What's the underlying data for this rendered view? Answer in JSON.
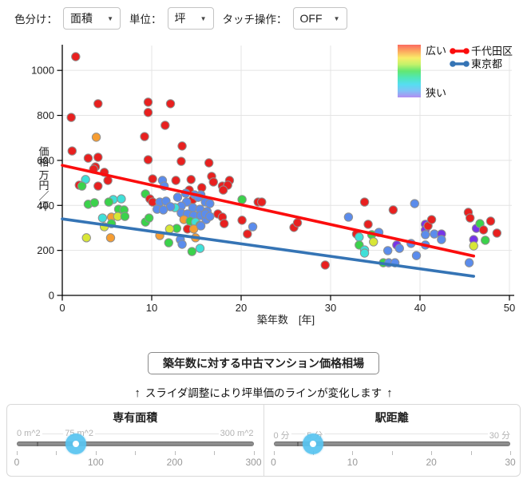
{
  "controls": {
    "color_by_label": "色分け：",
    "color_by_value": "面積",
    "unit_label": "単位：",
    "unit_value": "坪",
    "touch_label": "タッチ操作：",
    "touch_value": "OFF",
    "caret": "▼"
  },
  "chart_data": {
    "type": "scatter",
    "xlabel": "築年数　[年]",
    "ylabel": "価格 万円／坪",
    "xlim": [
      0,
      50
    ],
    "ylim": [
      0,
      1100
    ],
    "xticks": [
      0,
      10,
      20,
      30,
      40,
      50
    ],
    "yticks": [
      0,
      200,
      400,
      600,
      800,
      1000
    ],
    "grid": true,
    "point_colors": {
      "R": "#e8201f",
      "O": "#f69d32",
      "Y": "#d8e636",
      "G": "#3bd24b",
      "C": "#3fe0d8",
      "B": "#5b8cec",
      "P": "#7734e8"
    },
    "legend": {
      "gradient_labels": {
        "top": "広い",
        "bottom": "狭い"
      },
      "gradient_colors": [
        "#fb6a60",
        "#fcaa5f",
        "#f9ec68",
        "#c3f26a",
        "#63e771",
        "#50e7b7",
        "#55def0",
        "#7fc2f6",
        "#b28df2"
      ],
      "series": [
        {
          "label": "千代田区",
          "color": "#fb0d0d"
        },
        {
          "label": "東京都",
          "color": "#3574b5"
        }
      ]
    },
    "trend_lines": [
      {
        "name": "千代田区",
        "color": "#fb0d0d",
        "x": [
          0,
          46
        ],
        "y": [
          578,
          175
        ]
      },
      {
        "name": "東京都",
        "color": "#3574b5",
        "x": [
          0,
          46
        ],
        "y": [
          340,
          85
        ]
      }
    ],
    "points": [
      [
        1.5,
        1061,
        "R"
      ],
      [
        4.0,
        852,
        "R"
      ],
      [
        1.0,
        791,
        "R"
      ],
      [
        9.6,
        859,
        "R"
      ],
      [
        9.6,
        813,
        "R"
      ],
      [
        12.1,
        852,
        "R"
      ],
      [
        11.5,
        756,
        "R"
      ],
      [
        3.8,
        703,
        "O"
      ],
      [
        9.2,
        706,
        "R"
      ],
      [
        1.1,
        642,
        "R"
      ],
      [
        13.4,
        664,
        "R"
      ],
      [
        2.9,
        610,
        "R"
      ],
      [
        4.0,
        614,
        "R"
      ],
      [
        3.7,
        571,
        "R"
      ],
      [
        9.6,
        603,
        "R"
      ],
      [
        13.3,
        596,
        "R"
      ],
      [
        16.4,
        589,
        "R"
      ],
      [
        3.5,
        561,
        "R"
      ],
      [
        4.7,
        547,
        "R"
      ],
      [
        5.1,
        511,
        "R"
      ],
      [
        2.6,
        515,
        "C"
      ],
      [
        1.9,
        490,
        "R"
      ],
      [
        2.2,
        486,
        "G"
      ],
      [
        4.0,
        486,
        "R"
      ],
      [
        10.1,
        518,
        "R"
      ],
      [
        11.2,
        511,
        "B"
      ],
      [
        11.4,
        486,
        "B"
      ],
      [
        12.7,
        511,
        "R"
      ],
      [
        14.4,
        515,
        "R"
      ],
      [
        16.7,
        529,
        "R"
      ],
      [
        16.9,
        504,
        "R"
      ],
      [
        17.9,
        486,
        "R"
      ],
      [
        18.7,
        511,
        "R"
      ],
      [
        18.5,
        490,
        "R"
      ],
      [
        15.6,
        479,
        "R"
      ],
      [
        14.2,
        468,
        "R"
      ],
      [
        18.0,
        468,
        "R"
      ],
      [
        12.9,
        436,
        "B"
      ],
      [
        13.8,
        454,
        "B"
      ],
      [
        14.6,
        426,
        "R"
      ],
      [
        14.8,
        447,
        "B"
      ],
      [
        15.5,
        447,
        "B"
      ],
      [
        15.2,
        436,
        "B"
      ],
      [
        16.0,
        415,
        "B"
      ],
      [
        13.9,
        415,
        "B"
      ],
      [
        13.3,
        397,
        "B"
      ],
      [
        12.6,
        390,
        "C"
      ],
      [
        14.6,
        390,
        "B"
      ],
      [
        15.4,
        383,
        "B"
      ],
      [
        16.2,
        373,
        "B"
      ],
      [
        16.5,
        408,
        "B"
      ],
      [
        13.3,
        366,
        "B"
      ],
      [
        14.0,
        362,
        "B"
      ],
      [
        14.7,
        355,
        "B"
      ],
      [
        15.5,
        355,
        "B"
      ],
      [
        16.1,
        337,
        "B"
      ],
      [
        16.0,
        362,
        "B"
      ],
      [
        13.6,
        337,
        "O"
      ],
      [
        14.3,
        330,
        "G"
      ],
      [
        14.9,
        326,
        "C"
      ],
      [
        15.4,
        312,
        "G"
      ],
      [
        17.4,
        362,
        "R"
      ],
      [
        17.9,
        348,
        "R"
      ],
      [
        12.8,
        298,
        "G"
      ],
      [
        14.0,
        295,
        "R"
      ],
      [
        14.7,
        295,
        "O"
      ],
      [
        15.5,
        309,
        "B"
      ],
      [
        18.1,
        319,
        "R"
      ],
      [
        5.7,
        426,
        "C"
      ],
      [
        6.6,
        429,
        "C"
      ],
      [
        2.9,
        405,
        "G"
      ],
      [
        3.6,
        412,
        "G"
      ],
      [
        5.2,
        415,
        "G"
      ],
      [
        6.3,
        383,
        "G"
      ],
      [
        6.9,
        380,
        "G"
      ],
      [
        5.5,
        348,
        "O"
      ],
      [
        6.2,
        351,
        "Y"
      ],
      [
        7.0,
        351,
        "G"
      ],
      [
        4.5,
        344,
        "C"
      ],
      [
        4.7,
        305,
        "Y"
      ],
      [
        5.5,
        319,
        "G"
      ],
      [
        9.3,
        326,
        "G"
      ],
      [
        9.7,
        344,
        "G"
      ],
      [
        9.3,
        451,
        "G"
      ],
      [
        9.8,
        429,
        "R"
      ],
      [
        10.1,
        415,
        "R"
      ],
      [
        10.9,
        415,
        "B"
      ],
      [
        11.6,
        419,
        "B"
      ],
      [
        12.1,
        394,
        "B"
      ],
      [
        10.6,
        383,
        "B"
      ],
      [
        11.3,
        380,
        "B"
      ],
      [
        12.0,
        295,
        "Y"
      ],
      [
        10.9,
        266,
        "O"
      ],
      [
        2.7,
        256,
        "Y"
      ],
      [
        5.4,
        256,
        "O"
      ],
      [
        11.9,
        234,
        "G"
      ],
      [
        13.2,
        248,
        "B"
      ],
      [
        13.4,
        227,
        "B"
      ],
      [
        14.5,
        195,
        "G"
      ],
      [
        15.4,
        209,
        "C"
      ],
      [
        14.9,
        256,
        "O"
      ],
      [
        16.5,
        351,
        "B"
      ],
      [
        20.1,
        426,
        "G"
      ],
      [
        21.9,
        415,
        "R"
      ],
      [
        22.3,
        415,
        "R"
      ],
      [
        20.1,
        334,
        "R"
      ],
      [
        21.3,
        305,
        "B"
      ],
      [
        20.7,
        273,
        "R"
      ],
      [
        25.9,
        302,
        "R"
      ],
      [
        26.3,
        323,
        "R"
      ],
      [
        29.4,
        135,
        "R"
      ],
      [
        32.0,
        348,
        "B"
      ],
      [
        32.9,
        273,
        "R"
      ],
      [
        33.2,
        259,
        "C"
      ],
      [
        33.2,
        224,
        "G"
      ],
      [
        33.8,
        415,
        "R"
      ],
      [
        33.8,
        202,
        "C"
      ],
      [
        33.8,
        188,
        "C"
      ],
      [
        34.2,
        316,
        "R"
      ],
      [
        34.6,
        270,
        "G"
      ],
      [
        34.8,
        238,
        "Y"
      ],
      [
        35.4,
        280,
        "B"
      ],
      [
        35.9,
        145,
        "G"
      ],
      [
        36.5,
        145,
        "B"
      ],
      [
        37.2,
        145,
        "B"
      ],
      [
        36.4,
        199,
        "B"
      ],
      [
        37.0,
        380,
        "R"
      ],
      [
        37.4,
        224,
        "P"
      ],
      [
        37.7,
        209,
        "B"
      ],
      [
        39.0,
        231,
        "B"
      ],
      [
        39.4,
        408,
        "B"
      ],
      [
        39.6,
        177,
        "B"
      ],
      [
        40.6,
        316,
        "P"
      ],
      [
        40.6,
        291,
        "P"
      ],
      [
        40.6,
        270,
        "B"
      ],
      [
        40.6,
        224,
        "B"
      ],
      [
        40.9,
        309,
        "R"
      ],
      [
        41.3,
        337,
        "R"
      ],
      [
        41.6,
        273,
        "B"
      ],
      [
        42.4,
        273,
        "P"
      ],
      [
        42.4,
        248,
        "B"
      ],
      [
        45.4,
        369,
        "R"
      ],
      [
        45.6,
        344,
        "R"
      ],
      [
        45.5,
        145,
        "B"
      ],
      [
        46.0,
        248,
        "P"
      ],
      [
        46.0,
        220,
        "Y"
      ],
      [
        46.3,
        298,
        "P"
      ],
      [
        46.7,
        319,
        "G"
      ],
      [
        47.1,
        291,
        "R"
      ],
      [
        47.3,
        245,
        "G"
      ],
      [
        47.9,
        330,
        "R"
      ],
      [
        48.6,
        277,
        "R"
      ]
    ]
  },
  "button_label": "築年数に対する中古マンション価格相場",
  "note": {
    "arrow": "↑",
    "text": "スライダ調整により坪単価のラインが変化します"
  },
  "sliders": [
    {
      "title": "専有面積",
      "min": 0,
      "max": 300,
      "value": 75,
      "min_label": "0 m^2",
      "value_label": "75 m^2",
      "max_label": "300 m^2",
      "majors": [
        0,
        100,
        200,
        300
      ],
      "minor_step": 50,
      "notch": 25
    },
    {
      "title": "駅距離",
      "min": 0,
      "max": 30,
      "value": 5,
      "min_label": "0 分",
      "value_label": "5 分",
      "max_label": "30 分",
      "majors": [
        0,
        10,
        20,
        30
      ],
      "minor_step": 5,
      "notch": 3
    }
  ]
}
